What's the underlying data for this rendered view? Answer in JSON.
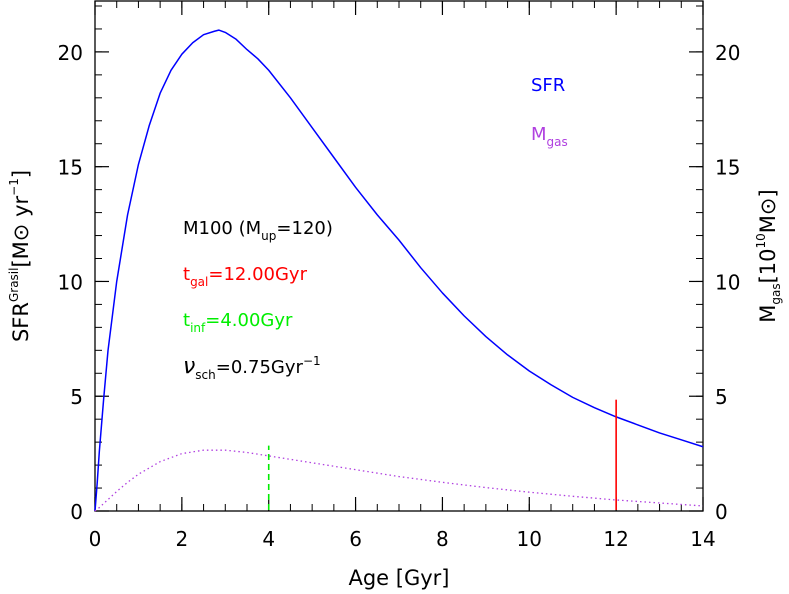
{
  "chart_data": {
    "type": "line",
    "title": "",
    "xlabel": "Age [Gyr]",
    "ylabel_left": {
      "main": "SFR",
      "sup": "Grasil",
      "unit": "[M",
      "sun": "⊙",
      "tail": " yr",
      "tail_sup": "−1",
      "close": "]"
    },
    "ylabel_right": {
      "main": "M",
      "sub": "gas",
      "unit": "[10",
      "unit_sup": "10",
      "sym": "M",
      "sun": "⊙",
      "close": "]"
    },
    "xlim": [
      0,
      14
    ],
    "ylim": [
      0,
      22
    ],
    "x_ticks": [
      "0",
      "2",
      "4",
      "6",
      "8",
      "10",
      "12",
      "14"
    ],
    "y_ticks_left": [
      "0",
      "5",
      "10",
      "15",
      "20"
    ],
    "y_ticks_right": [
      "0",
      "5",
      "10",
      "15",
      "20"
    ],
    "grid": false,
    "legend_position": "top-right",
    "legend": [
      {
        "main": "SFR",
        "sub": "",
        "color": "#0000ff"
      },
      {
        "main": "M",
        "sub": "gas",
        "color": "#b040e0"
      }
    ],
    "series": [
      {
        "name": "SFR",
        "color": "#0000ff",
        "style": "solid",
        "x": [
          0,
          0.05,
          0.1,
          0.2,
          0.3,
          0.5,
          0.75,
          1.0,
          1.25,
          1.5,
          1.75,
          2.0,
          2.25,
          2.5,
          2.75,
          2.85,
          3.0,
          3.25,
          3.5,
          3.75,
          4.0,
          4.5,
          5.0,
          5.5,
          6.0,
          6.5,
          7.0,
          7.5,
          8.0,
          8.5,
          9.0,
          9.5,
          10.0,
          10.5,
          11.0,
          11.5,
          12.0,
          12.5,
          13.0,
          13.5,
          14.0
        ],
        "y": [
          0,
          1.2,
          2.6,
          4.9,
          7.0,
          10.0,
          12.9,
          15.1,
          16.8,
          18.2,
          19.2,
          19.9,
          20.4,
          20.75,
          20.9,
          20.95,
          20.85,
          20.55,
          20.1,
          19.7,
          19.2,
          18.0,
          16.7,
          15.4,
          14.1,
          12.9,
          11.8,
          10.6,
          9.5,
          8.5,
          7.6,
          6.8,
          6.1,
          5.5,
          4.95,
          4.5,
          4.1,
          3.75,
          3.4,
          3.1,
          2.8
        ]
      },
      {
        "name": "Mgas",
        "color": "#b040e0",
        "style": "dotted",
        "x": [
          0,
          0.1,
          0.3,
          0.5,
          0.75,
          1.0,
          1.5,
          2.0,
          2.5,
          3.0,
          3.5,
          4.0,
          5.0,
          6.0,
          7.0,
          8.0,
          9.0,
          10.0,
          11.0,
          12.0,
          13.0,
          14.0
        ],
        "y": [
          0,
          0.15,
          0.5,
          0.85,
          1.25,
          1.6,
          2.15,
          2.5,
          2.65,
          2.65,
          2.55,
          2.4,
          2.1,
          1.8,
          1.5,
          1.25,
          1.02,
          0.82,
          0.64,
          0.48,
          0.35,
          0.22
        ]
      }
    ],
    "vertical_markers": [
      {
        "name": "t_inf",
        "x": 4.0,
        "y_top": 2.85,
        "color": "#00ee00",
        "style": "dashed"
      },
      {
        "name": "t_gal",
        "x": 12.0,
        "y_top": 4.85,
        "color": "#ff0000",
        "style": "solid"
      }
    ],
    "annotations": [
      {
        "id": "model",
        "color": "#000000",
        "parts": [
          [
            "t",
            "M100 (M"
          ],
          [
            "sub",
            "up"
          ],
          [
            "t",
            "=120)"
          ]
        ]
      },
      {
        "id": "tgal",
        "color": "#ff0000",
        "parts": [
          [
            "t",
            "t"
          ],
          [
            "sub",
            "gal"
          ],
          [
            "t",
            "=12.00Gyr"
          ]
        ]
      },
      {
        "id": "tinf",
        "color": "#00ee00",
        "parts": [
          [
            "t",
            "t"
          ],
          [
            "sub",
            "inf"
          ],
          [
            "t",
            "=4.00Gyr"
          ]
        ]
      },
      {
        "id": "nu",
        "color": "#000000",
        "parts": [
          [
            "nu",
            "ν"
          ],
          [
            "sub",
            "sch"
          ],
          [
            "t",
            "=0.75Gyr"
          ],
          [
            "sup",
            "−1"
          ]
        ]
      }
    ]
  }
}
